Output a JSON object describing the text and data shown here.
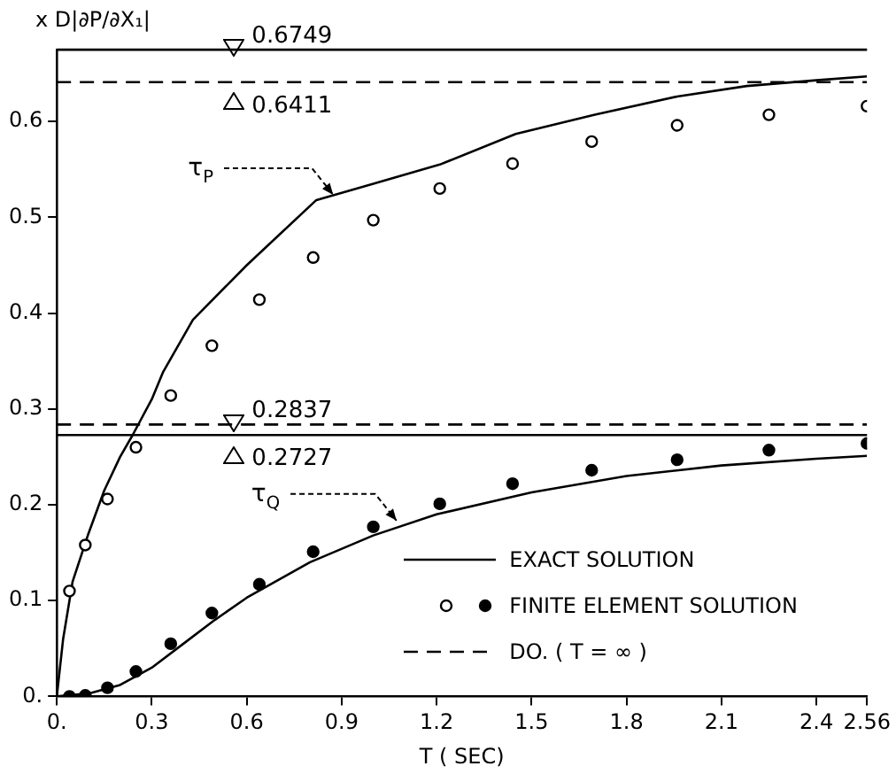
{
  "chart_data": {
    "type": "line",
    "xlabel": "T ( SEC)",
    "ylabel": "x D|∂P/∂X₁|",
    "xlim": [
      0,
      2.56
    ],
    "ylim": [
      0,
      0.675
    ],
    "xticks": [
      {
        "value": 0,
        "label": "0."
      },
      0.3,
      0.6,
      0.9,
      1.2,
      1.5,
      1.8,
      2.1,
      2.4,
      2.56
    ],
    "yticks": [
      {
        "value": 0,
        "label": "0."
      },
      0.1,
      0.2,
      0.3,
      0.4,
      0.5,
      0.6
    ],
    "grid": false,
    "legend": "bottom right",
    "series": [
      {
        "name": "EXACT SOLUTION",
        "type": "line",
        "color": "#000000",
        "line_style": "solid",
        "marker": "none",
        "x": [
          0,
          0.02,
          0.05,
          0.1,
          0.15,
          0.2,
          0.24,
          0.3,
          0.335,
          0.43,
          0.6,
          0.82,
          1.0,
          1.21,
          1.45,
          1.7,
          1.96,
          2.18,
          2.4,
          2.56
        ],
        "values": [
          0,
          0.06,
          0.12,
          0.17,
          0.215,
          0.25,
          0.273,
          0.31,
          0.338,
          0.393,
          0.45,
          0.518,
          0.535,
          0.555,
          0.587,
          0.607,
          0.626,
          0.637,
          0.643,
          0.647
        ]
      },
      {
        "type": "line",
        "color": "#000000",
        "line_style": "solid",
        "marker": "none",
        "x": [
          0,
          0.1,
          0.2,
          0.3,
          0.4,
          0.5,
          0.6,
          0.8,
          1.0,
          1.2,
          1.5,
          1.8,
          2.1,
          2.4,
          2.56
        ],
        "values": [
          0,
          0.003,
          0.012,
          0.03,
          0.055,
          0.08,
          0.103,
          0.14,
          0.168,
          0.19,
          0.213,
          0.23,
          0.241,
          0.248,
          0.251
        ]
      },
      {
        "type": "scatter",
        "color": "#ffffff",
        "marker": "circle",
        "x": [
          0.04,
          0.09,
          0.16,
          0.25,
          0.36,
          0.49,
          0.64,
          0.81,
          1.0,
          1.21,
          1.44,
          1.69,
          1.96,
          2.25,
          2.56
        ],
        "values": [
          0.11,
          0.158,
          0.206,
          0.26,
          0.314,
          0.366,
          0.414,
          0.458,
          0.497,
          0.53,
          0.556,
          0.579,
          0.596,
          0.607,
          0.616
        ]
      },
      {
        "name": "FINITE ELEMENT SOLUTION",
        "type": "scatter",
        "color": "#000000",
        "marker": "circle",
        "x": [
          0.04,
          0.09,
          0.16,
          0.25,
          0.36,
          0.49,
          0.64,
          0.81,
          1.0,
          1.21,
          1.44,
          1.69,
          1.96,
          2.25,
          2.56
        ],
        "values": [
          0,
          0.001,
          0.009,
          0.026,
          0.055,
          0.087,
          0.117,
          0.151,
          0.177,
          0.201,
          0.222,
          0.236,
          0.247,
          0.257,
          0.264
        ]
      },
      {
        "name": "DO. ( T = ∞ )",
        "type": "line",
        "color": "#000000",
        "line_style": "dashed",
        "marker": "none",
        "x": [
          0,
          2.56
        ],
        "values": [
          0.6411,
          0.6411
        ]
      },
      {
        "type": "line",
        "color": "#000000",
        "line_style": "dashed",
        "marker": "none",
        "x": [
          0,
          2.56
        ],
        "values": [
          0.2837,
          0.2837
        ]
      }
    ],
    "ref_lines": [
      {
        "axis": "y",
        "value": 0.6749,
        "color": "#000000",
        "line_style": "solid"
      },
      {
        "axis": "y",
        "value": 0.2727,
        "color": "#000000",
        "line_style": "solid"
      }
    ],
    "annotations": [
      {
        "text": "0.6749",
        "x": 0.56,
        "y": 0.6749
      },
      {
        "text": "0.6411",
        "x": 0.56,
        "y": 0.6411
      },
      {
        "text": "0.2837",
        "x": 0.56,
        "y": 0.2837
      },
      {
        "text": "0.2727",
        "x": 0.56,
        "y": 0.2727
      },
      {
        "text": "τ$_{P}$",
        "x": 0.89,
        "y": 0.518
      },
      {
        "text": "τ$_{Q}$",
        "x": 1.09,
        "y": 0.178
      }
    ]
  }
}
